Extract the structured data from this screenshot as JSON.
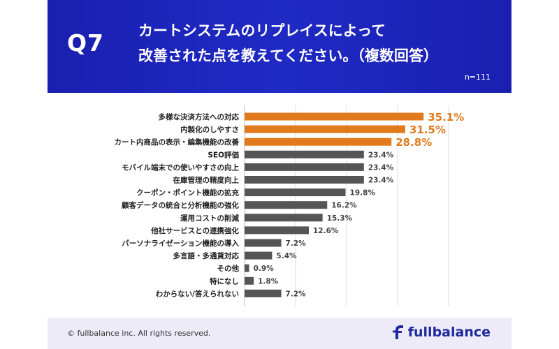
{
  "header": {
    "question": "Q7",
    "title_line1": "カートシステムのリプレイスによって",
    "title_line2": "改善された点を教えてください。（複数回答）",
    "sample": "n=111"
  },
  "footer": {
    "copyright": "© fullbalance inc. All rights reserved.",
    "brand": "fullbalance"
  },
  "colors": {
    "header_bg": "#1f2ac4",
    "highlight_bar": "#e07a1c",
    "normal_bar": "#555555",
    "footer_bg": "#ecebf7",
    "brand": "#1f2a9e"
  },
  "chart_data": {
    "type": "bar",
    "orientation": "horizontal",
    "categories": [
      "多様な決済方法への対応",
      "内製化のしやすさ",
      "カート内商品の表示・編集機能の改善",
      "SEO評価",
      "モバイル端末での使いやすさの向上",
      "在庫管理の精度向上",
      "クーポン・ポイント機能の拡充",
      "顧客データの統合と分析機能の強化",
      "運用コストの削減",
      "他社サービスとの連携強化",
      "パーソナライゼーション機能の導入",
      "多言語・多通貨対応",
      "その他",
      "特になし",
      "わからない/答えられない"
    ],
    "values": [
      35.1,
      31.5,
      28.8,
      23.4,
      23.4,
      23.4,
      19.8,
      16.2,
      15.3,
      12.6,
      7.2,
      5.4,
      0.9,
      1.8,
      7.2
    ],
    "value_labels": [
      "35.1%",
      "31.5%",
      "28.8%",
      "23.4%",
      "23.4%",
      "23.4%",
      "19.8%",
      "16.2%",
      "15.3%",
      "12.6%",
      "7.2%",
      "5.4%",
      "0.9%",
      "1.8%",
      "7.2%"
    ],
    "highlight_top": 3,
    "xlim": [
      0,
      40
    ],
    "grid": true,
    "unit": "%"
  }
}
